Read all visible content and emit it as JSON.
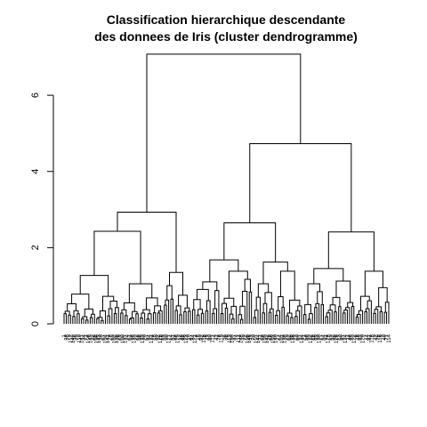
{
  "chart_data": {
    "type": "dendrogram",
    "title_line1": "Classification hierarchique descendante",
    "title_line2": "des donnees de Iris (cluster dendrogramme)",
    "xlabel": "",
    "ylabel": "",
    "ylim": [
      0,
      7.1
    ],
    "yticks": [
      0,
      2,
      4,
      6
    ],
    "grid": false,
    "leaf_count": 150,
    "merges": [
      {
        "id": "root",
        "height": 7.08,
        "children": [
          "A",
          "B"
        ]
      },
      {
        "id": "A",
        "height": 2.93,
        "children": [
          "A1",
          "A2"
        ]
      },
      {
        "id": "A1",
        "height": 2.43,
        "children": [
          "A1a",
          "A1b"
        ]
      },
      {
        "id": "A1a",
        "height": 1.27,
        "children": [
          "A1a-l",
          "A1a-r"
        ]
      },
      {
        "id": "A1b",
        "height": 1.05,
        "children": [
          "A1b-l",
          "A1b-r"
        ]
      },
      {
        "id": "A2",
        "height": 1.35,
        "children": [
          "A2-l",
          "A2-r"
        ]
      },
      {
        "id": "B",
        "height": 4.73,
        "children": [
          "B1",
          "B2"
        ]
      },
      {
        "id": "B1",
        "height": 2.65,
        "children": [
          "B1a",
          "B1b"
        ]
      },
      {
        "id": "B1a",
        "height": 1.68,
        "children": [
          "B1a-l",
          "B1a-r"
        ]
      },
      {
        "id": "B1b",
        "height": 1.62,
        "children": [
          "B1b-l",
          "B1b-r"
        ]
      },
      {
        "id": "B2",
        "height": 2.41,
        "children": [
          "B2a",
          "B2b"
        ]
      },
      {
        "id": "B2a",
        "height": 1.45,
        "children": [
          "B2a-l",
          "B2a-r"
        ]
      },
      {
        "id": "B2b",
        "height": 1.38,
        "children": [
          "B2b-l",
          "B2b-r"
        ]
      }
    ]
  }
}
